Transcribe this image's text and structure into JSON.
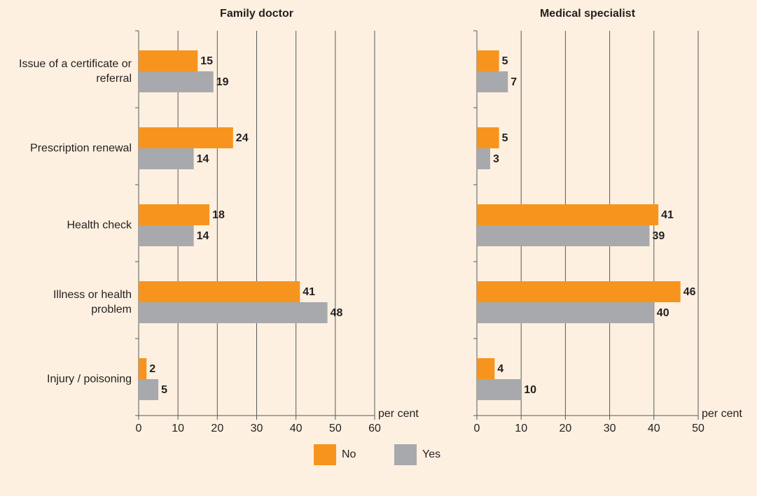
{
  "chart_data": [
    {
      "type": "bar",
      "orientation": "horizontal",
      "title": "Family doctor",
      "xlabel": "per cent",
      "categories": [
        "Issue of a certificate or referral",
        "Prescription renewal",
        "Health check",
        "Illness or health problem",
        "Injury / poisoning"
      ],
      "series": [
        {
          "name": "No",
          "color": "#f7941d",
          "values": [
            15,
            24,
            18,
            41,
            2
          ]
        },
        {
          "name": "Yes",
          "color": "#a7a9ac",
          "values": [
            19,
            14,
            14,
            48,
            5
          ]
        }
      ],
      "xlim": [
        0,
        60
      ],
      "xticks": [
        0,
        10,
        20,
        30,
        40,
        50,
        60
      ],
      "grid": true
    },
    {
      "type": "bar",
      "orientation": "horizontal",
      "title": "Medical specialist",
      "xlabel": "per cent",
      "series": [
        {
          "color": "#f7941d",
          "values": [
            5,
            5,
            41,
            46,
            4
          ]
        },
        {
          "color": "#a7a9ac",
          "values": [
            7,
            3,
            39,
            40,
            10
          ]
        }
      ],
      "xlim": [
        0,
        50
      ],
      "xticks": [
        0,
        10,
        20,
        30,
        40,
        50
      ],
      "grid": true
    }
  ]
}
